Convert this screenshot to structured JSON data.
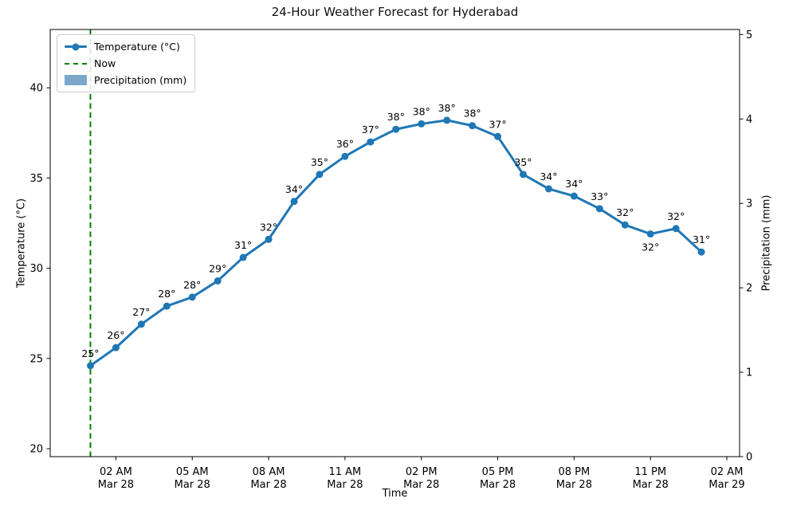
{
  "legend": {
    "items": [
      {
        "label": "Temperature (°C)",
        "type": "line-marker",
        "color": "#1f77b4"
      },
      {
        "label": "Now",
        "type": "dashed-line",
        "color": "#008000"
      },
      {
        "label": "Precipitation (mm)",
        "type": "patch",
        "color": "rgba(70,130,180,0.7)"
      }
    ]
  },
  "chart_data": {
    "type": "line",
    "title": "24-Hour Weather Forecast for Hyderabad",
    "xlabel": "Time",
    "ylabel_left": "Temperature (°C)",
    "ylabel_right": "Precipitation (mm)",
    "grid": false,
    "legend_position": "upper left",
    "x_hours": [
      0,
      1,
      2,
      3,
      4,
      5,
      6,
      7,
      8,
      9,
      10,
      11,
      12,
      13,
      14,
      15,
      16,
      17,
      18,
      19,
      20,
      21,
      22,
      23,
      24
    ],
    "temperature": {
      "name": "Temperature (°C)",
      "color": "#1f77b4",
      "values": [
        24.6,
        25.6,
        26.9,
        27.9,
        28.4,
        29.3,
        30.6,
        31.6,
        33.7,
        35.2,
        36.2,
        37.0,
        37.7,
        38.0,
        38.2,
        37.9,
        37.3,
        35.2,
        34.4,
        34.0,
        33.3,
        32.4,
        31.9,
        32.2,
        30.9
      ],
      "point_labels": [
        "25°",
        "26°",
        "27°",
        "28°",
        "28°",
        "29°",
        "31°",
        "32°",
        "34°",
        "35°",
        "36°",
        "37°",
        "38°",
        "38°",
        "38°",
        "38°",
        "37°",
        "35°",
        "34°",
        "34°",
        "33°",
        "32°",
        "32°",
        "32°",
        "31°"
      ],
      "labels_below_indices": [
        22
      ]
    },
    "precipitation": {
      "name": "Precipitation (mm)",
      "color": "rgba(70,130,180,0.7)",
      "values": [
        0,
        0,
        0,
        0,
        0,
        0,
        0,
        0,
        0,
        0,
        0,
        0,
        0,
        0,
        0,
        0,
        0,
        0,
        0,
        0,
        0,
        0,
        0,
        0,
        0
      ]
    },
    "now_marker": {
      "label": "Now",
      "x_hour": 0,
      "color": "#008000",
      "style": "dashed"
    },
    "x_ticks": [
      {
        "hour": 1,
        "time": "02 AM",
        "date": "Mar 28"
      },
      {
        "hour": 4,
        "time": "05 AM",
        "date": "Mar 28"
      },
      {
        "hour": 7,
        "time": "08 AM",
        "date": "Mar 28"
      },
      {
        "hour": 10,
        "time": "11 AM",
        "date": "Mar 28"
      },
      {
        "hour": 13,
        "time": "02 PM",
        "date": "Mar 28"
      },
      {
        "hour": 16,
        "time": "05 PM",
        "date": "Mar 28"
      },
      {
        "hour": 19,
        "time": "08 PM",
        "date": "Mar 28"
      },
      {
        "hour": 22,
        "time": "11 PM",
        "date": "Mar 28"
      },
      {
        "hour": 25,
        "time": "02 AM",
        "date": "Mar 29"
      }
    ],
    "y_left_ticks": [
      20,
      25,
      30,
      35,
      40
    ],
    "y_right_ticks": [
      0,
      1,
      2,
      3,
      4,
      5
    ],
    "xlim_hours": [
      -1.58,
      25.5
    ],
    "ylim_left": [
      19.56,
      43.23
    ],
    "ylim_right": [
      0,
      5.06
    ]
  }
}
